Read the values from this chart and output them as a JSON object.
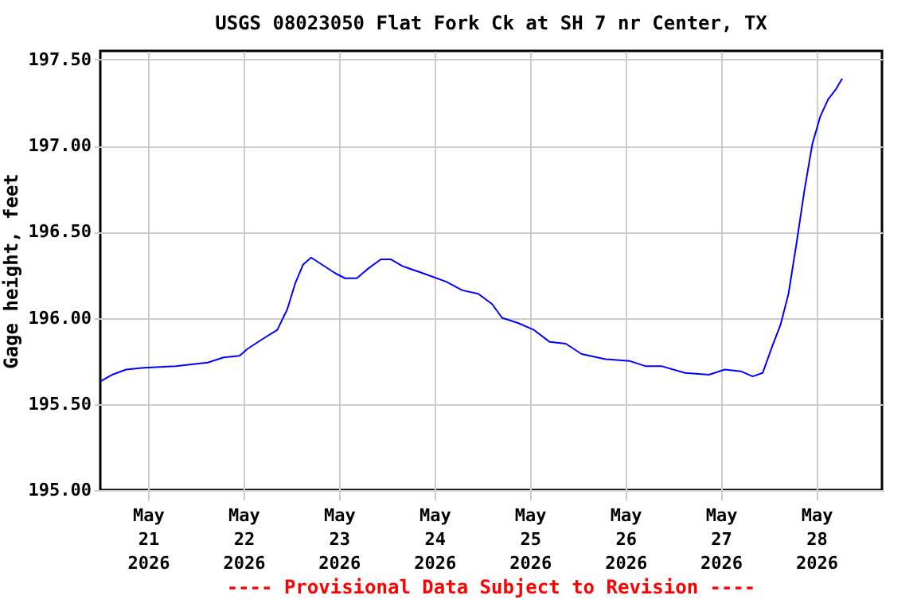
{
  "chart_data": {
    "type": "line",
    "title": "USGS 08023050 Flat Fork Ck at SH 7 nr Center, TX",
    "ylabel": "Gage height, feet",
    "annotations": [
      "---- Provisional Data Subject to Revision ----"
    ],
    "x": [
      "2026-05-20T12:00",
      "2026-05-20T15:00",
      "2026-05-20T18:30",
      "2026-05-20T23:00",
      "2026-05-21T07:00",
      "2026-05-21T15:00",
      "2026-05-21T19:00",
      "2026-05-21T23:00",
      "2026-05-22T01:00",
      "2026-05-22T05:00",
      "2026-05-22T08:30",
      "2026-05-22T11:00",
      "2026-05-22T13:00",
      "2026-05-22T15:00",
      "2026-05-22T17:00",
      "2026-05-22T19:00",
      "2026-05-22T23:00",
      "2026-05-23T01:30",
      "2026-05-23T04:30",
      "2026-05-23T07:00",
      "2026-05-23T10:30",
      "2026-05-23T13:00",
      "2026-05-23T16:00",
      "2026-05-23T21:00",
      "2026-05-24T03:00",
      "2026-05-24T07:00",
      "2026-05-24T11:00",
      "2026-05-24T14:30",
      "2026-05-24T17:00",
      "2026-05-24T21:00",
      "2026-05-25T01:00",
      "2026-05-25T05:00",
      "2026-05-25T09:00",
      "2026-05-25T13:00",
      "2026-05-25T19:00",
      "2026-05-26T01:00",
      "2026-05-26T05:00",
      "2026-05-26T09:00",
      "2026-05-26T15:00",
      "2026-05-26T21:00",
      "2026-05-27T01:00",
      "2026-05-27T05:00",
      "2026-05-27T08:00",
      "2026-05-27T10:30",
      "2026-05-27T13:00",
      "2026-05-27T15:00",
      "2026-05-27T17:00",
      "2026-05-27T19:00",
      "2026-05-27T21:00",
      "2026-05-27T23:00",
      "2026-05-28T01:00",
      "2026-05-28T03:00",
      "2026-05-28T05:00",
      "2026-05-28T06:30"
    ],
    "series": [
      {
        "color": "#0000ff",
        "values": [
          195.63,
          195.67,
          195.7,
          195.71,
          195.72,
          195.74,
          195.77,
          195.78,
          195.82,
          195.88,
          195.93,
          196.05,
          196.2,
          196.31,
          196.35,
          196.32,
          196.26,
          196.23,
          196.23,
          196.28,
          196.34,
          196.34,
          196.3,
          196.26,
          196.21,
          196.16,
          196.14,
          196.08,
          196.0,
          195.97,
          195.93,
          195.86,
          195.85,
          195.79,
          195.76,
          195.75,
          195.72,
          195.72,
          195.68,
          195.67,
          195.7,
          195.69,
          195.66,
          195.68,
          195.84,
          195.96,
          196.14,
          196.43,
          196.74,
          197.01,
          197.17,
          197.27,
          197.33,
          197.39
        ]
      }
    ],
    "xlim": [
      "2026-05-20T12:00",
      "2026-05-28T16:30"
    ],
    "xticks": [
      {
        "value": "2026-05-21T00:00",
        "label": "May\n21\n2026"
      },
      {
        "value": "2026-05-22T00:00",
        "label": "May\n22\n2026"
      },
      {
        "value": "2026-05-23T00:00",
        "label": "May\n23\n2026"
      },
      {
        "value": "2026-05-24T00:00",
        "label": "May\n24\n2026"
      },
      {
        "value": "2026-05-25T00:00",
        "label": "May\n25\n2026"
      },
      {
        "value": "2026-05-26T00:00",
        "label": "May\n26\n2026"
      },
      {
        "value": "2026-05-27T00:00",
        "label": "May\n27\n2026"
      },
      {
        "value": "2026-05-28T00:00",
        "label": "May\n28\n2026"
      }
    ],
    "ylim": [
      195.0,
      197.55
    ],
    "yticks": [
      {
        "value": 195.0,
        "label": "195.00"
      },
      {
        "value": 195.5,
        "label": "195.50"
      },
      {
        "value": 196.0,
        "label": "196.00"
      },
      {
        "value": 196.5,
        "label": "196.50"
      },
      {
        "value": 197.0,
        "label": "197.00"
      },
      {
        "value": 197.5,
        "label": "197.50"
      }
    ],
    "grid": true,
    "marker": "none",
    "line_style": "solid"
  }
}
